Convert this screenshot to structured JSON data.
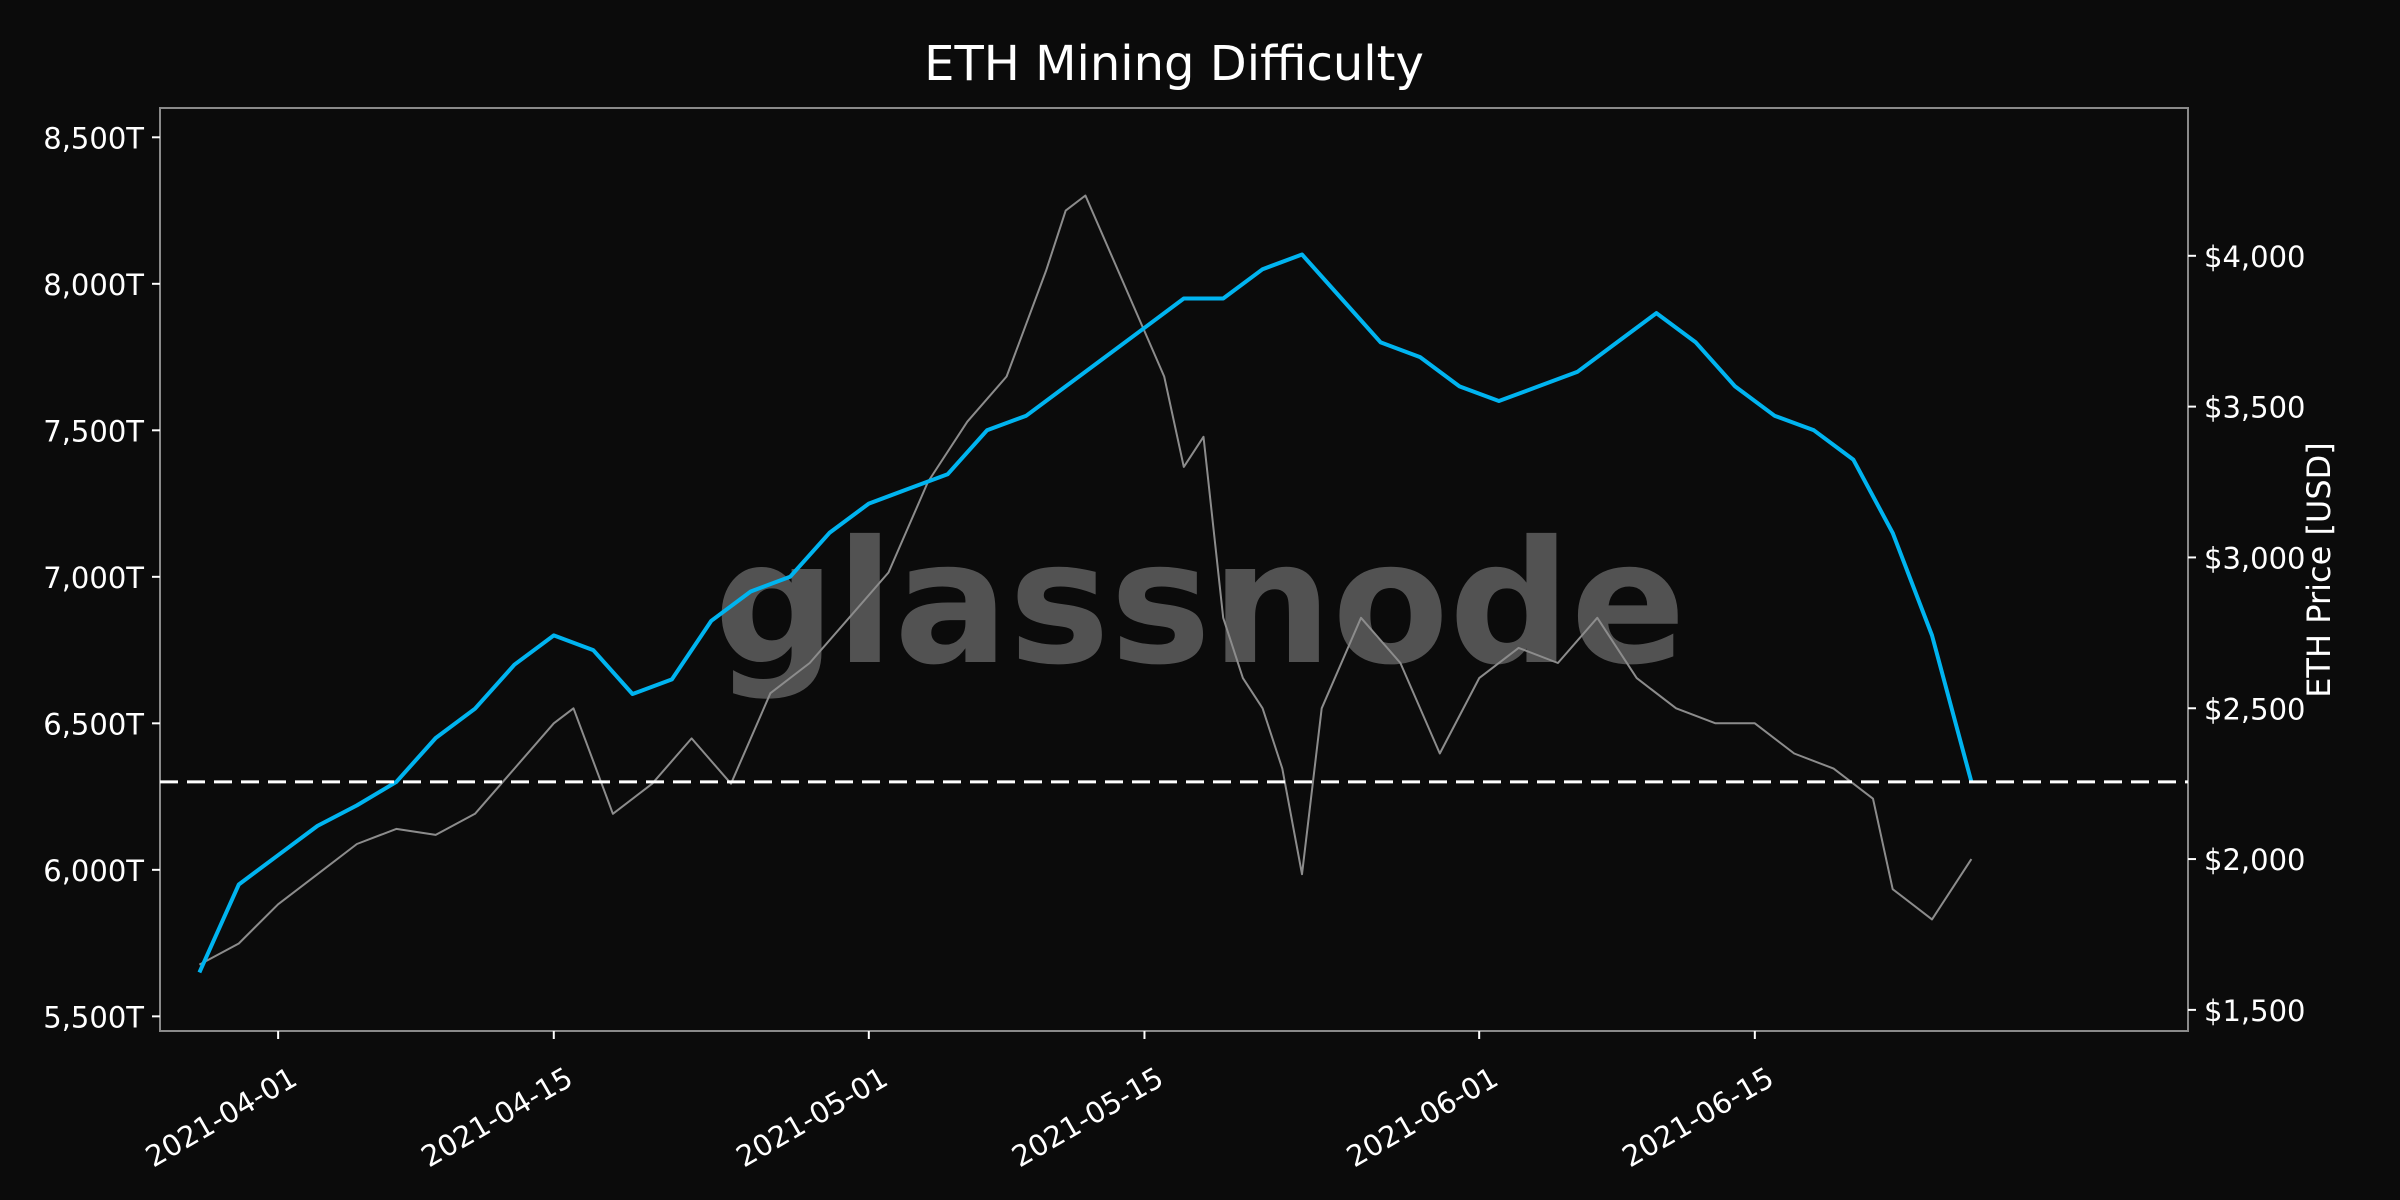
{
  "chart_data": {
    "type": "line",
    "title": "ETH Mining Difficulty",
    "xlabel": "",
    "ylabel": "",
    "y2label": "ETH Price [USD]",
    "watermark": "glassnode",
    "x_range": [
      "2021-03-26",
      "2021-07-07"
    ],
    "ylim": [
      5450,
      8600
    ],
    "y2lim": [
      1430,
      4490
    ],
    "y_ticks": [
      5500,
      6000,
      6500,
      7000,
      7500,
      8000,
      8500
    ],
    "y_tick_labels": [
      "5,500T",
      "6,000T",
      "6,500T",
      "7,000T",
      "7,500T",
      "8,000T",
      "8,500T"
    ],
    "y2_ticks": [
      1500,
      2000,
      2500,
      3000,
      3500,
      4000
    ],
    "y2_tick_labels": [
      "$1,500",
      "$2,000",
      "$2,500",
      "$3,000",
      "$3,500",
      "$4,000"
    ],
    "x_ticks": [
      "2021-04-01",
      "2021-04-15",
      "2021-05-01",
      "2021-05-15",
      "2021-06-01",
      "2021-06-15"
    ],
    "x_tick_labels": [
      "2021-04-01",
      "2021-04-15",
      "2021-05-01",
      "2021-05-15",
      "2021-06-01",
      "2021-06-15"
    ],
    "reference_line": {
      "axis": "left",
      "value": 6300,
      "style": "dashed",
      "color": "#ffffff"
    },
    "grid": false,
    "legend": "none",
    "colors": {
      "background": "#0b0b0b",
      "difficulty": "#00b4f0",
      "price": "#8c8c8c",
      "text": "#ffffff",
      "frame": "#8a8a8a"
    },
    "series": [
      {
        "axis": "left",
        "x": [
          "2021-03-28",
          "2021-03-30",
          "2021-04-01",
          "2021-04-03",
          "2021-04-05",
          "2021-04-07",
          "2021-04-09",
          "2021-04-11",
          "2021-04-13",
          "2021-04-15",
          "2021-04-17",
          "2021-04-19",
          "2021-04-21",
          "2021-04-23",
          "2021-04-25",
          "2021-04-27",
          "2021-04-29",
          "2021-05-01",
          "2021-05-03",
          "2021-05-05",
          "2021-05-07",
          "2021-05-09",
          "2021-05-11",
          "2021-05-13",
          "2021-05-15",
          "2021-05-17",
          "2021-05-19",
          "2021-05-21",
          "2021-05-23",
          "2021-05-25",
          "2021-05-27",
          "2021-05-29",
          "2021-05-31",
          "2021-06-02",
          "2021-06-04",
          "2021-06-06",
          "2021-06-08",
          "2021-06-10",
          "2021-06-12",
          "2021-06-14",
          "2021-06-16",
          "2021-06-18",
          "2021-06-20",
          "2021-06-22",
          "2021-06-24",
          "2021-06-26"
        ],
        "values": [
          5650,
          5950,
          6050,
          6150,
          6220,
          6300,
          6450,
          6550,
          6700,
          6800,
          6750,
          6600,
          6650,
          6850,
          6950,
          7000,
          7150,
          7250,
          7300,
          7350,
          7500,
          7550,
          7650,
          7750,
          7850,
          7950,
          7950,
          8050,
          8100,
          7950,
          7800,
          7750,
          7650,
          7600,
          7650,
          7700,
          7800,
          7900,
          7800,
          7650,
          7550,
          7500,
          7400,
          7150,
          6800,
          6300
        ]
      },
      {
        "axis": "right",
        "x": [
          "2021-03-28",
          "2021-03-30",
          "2021-04-01",
          "2021-04-03",
          "2021-04-05",
          "2021-04-07",
          "2021-04-09",
          "2021-04-11",
          "2021-04-13",
          "2021-04-15",
          "2021-04-16",
          "2021-04-18",
          "2021-04-20",
          "2021-04-22",
          "2021-04-24",
          "2021-04-26",
          "2021-04-28",
          "2021-04-30",
          "2021-05-02",
          "2021-05-04",
          "2021-05-06",
          "2021-05-08",
          "2021-05-10",
          "2021-05-11",
          "2021-05-12",
          "2021-05-14",
          "2021-05-16",
          "2021-05-17",
          "2021-05-18",
          "2021-05-19",
          "2021-05-20",
          "2021-05-21",
          "2021-05-22",
          "2021-05-23",
          "2021-05-24",
          "2021-05-26",
          "2021-05-28",
          "2021-05-30",
          "2021-06-01",
          "2021-06-03",
          "2021-06-05",
          "2021-06-07",
          "2021-06-09",
          "2021-06-11",
          "2021-06-13",
          "2021-06-15",
          "2021-06-17",
          "2021-06-19",
          "2021-06-21",
          "2021-06-22",
          "2021-06-24",
          "2021-06-26"
        ],
        "values": [
          1650,
          1720,
          1850,
          1950,
          2050,
          2100,
          2080,
          2150,
          2300,
          2450,
          2500,
          2150,
          2250,
          2400,
          2250,
          2550,
          2650,
          2800,
          2950,
          3250,
          3450,
          3600,
          3950,
          4150,
          4200,
          3900,
          3600,
          3300,
          3400,
          2800,
          2600,
          2500,
          2300,
          1950,
          2500,
          2800,
          2650,
          2350,
          2600,
          2700,
          2650,
          2800,
          2600,
          2500,
          2450,
          2450,
          2350,
          2300,
          2200,
          1900,
          1800,
          2000
        ]
      }
    ]
  }
}
